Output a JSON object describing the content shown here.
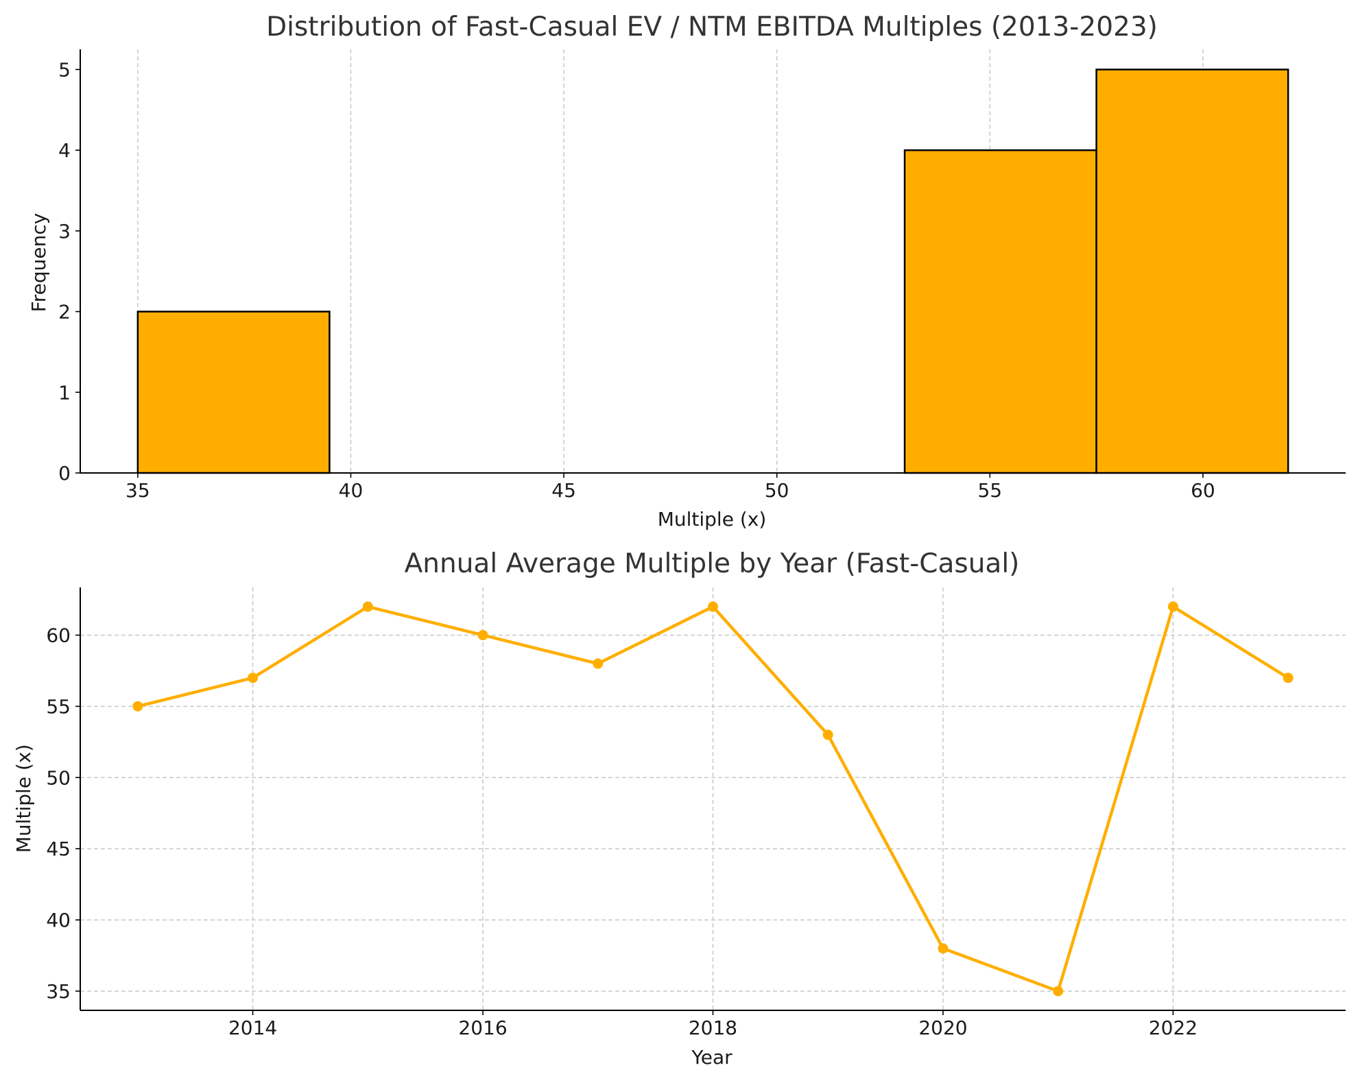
{
  "colors": {
    "accent": "#FFAE00",
    "edge": "#000000",
    "grid": "#C8C8C8"
  },
  "chart_data": [
    {
      "type": "bar",
      "subtype": "histogram",
      "title": "Distribution of Fast-Casual EV / NTM EBITDA Multiples (2013-2023)",
      "xlabel": "Multiple (x)",
      "ylabel": "Frequency",
      "bins": [
        {
          "start": 35.0,
          "end": 39.5,
          "count": 2
        },
        {
          "start": 53.0,
          "end": 57.5,
          "count": 4
        },
        {
          "start": 57.5,
          "end": 62.0,
          "count": 5
        }
      ],
      "xticks": [
        35,
        40,
        45,
        50,
        55,
        60
      ],
      "yticks": [
        0,
        1,
        2,
        3,
        4,
        5
      ],
      "xlim": [
        33.65,
        63.35
      ],
      "ylim": [
        0,
        5.25
      ],
      "grid": "x-axis dashed"
    },
    {
      "type": "line",
      "title": "Annual Average Multiple by Year (Fast-Casual)",
      "xlabel": "Year",
      "ylabel": "Multiple (x)",
      "x": [
        2013,
        2014,
        2015,
        2016,
        2017,
        2018,
        2019,
        2020,
        2021,
        2022,
        2023
      ],
      "y": [
        55,
        57,
        62,
        60,
        58,
        62,
        53,
        38,
        35,
        62,
        57
      ],
      "xticks": [
        2014,
        2016,
        2018,
        2020,
        2022
      ],
      "yticks": [
        35,
        40,
        45,
        50,
        55,
        60
      ],
      "xlim": [
        2012.5,
        2023.5
      ],
      "ylim": [
        33.65,
        63.35
      ],
      "markers": "circle",
      "grid": "both dashed"
    }
  ]
}
